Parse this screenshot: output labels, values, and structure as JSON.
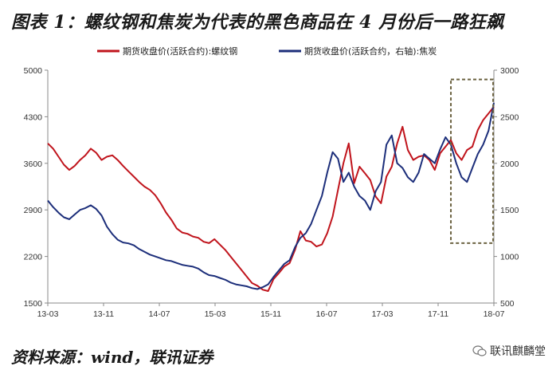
{
  "title": "图表 1：螺纹钢和焦炭为代表的黑色商品在 4 月份后一路狂飙",
  "source": "资料来源：wind，联讯证券",
  "watermark": "联讯麒麟堂",
  "colors": {
    "rebar": "#c0141c",
    "coke": "#1c2e7a",
    "box": "#6b6240"
  },
  "chart_data": {
    "type": "line",
    "x_ticks": [
      "13-03",
      "13-11",
      "14-07",
      "15-03",
      "15-11",
      "16-07",
      "17-03",
      "17-11",
      "18-07"
    ],
    "left_axis": {
      "ticks": [
        1500,
        2200,
        2900,
        3600,
        4300,
        5000
      ],
      "range": [
        1500,
        5000
      ]
    },
    "right_axis": {
      "ticks": [
        500,
        1000,
        1500,
        2000,
        2500,
        3000
      ],
      "range": [
        500,
        3000
      ]
    },
    "series": [
      {
        "name": "期货收盘价(活跃合约):螺纹钢",
        "axis": "left",
        "color": "#c0141c",
        "values": [
          3900,
          3820,
          3700,
          3580,
          3500,
          3560,
          3650,
          3720,
          3820,
          3760,
          3650,
          3700,
          3720,
          3650,
          3560,
          3480,
          3400,
          3320,
          3250,
          3200,
          3120,
          3000,
          2860,
          2750,
          2620,
          2560,
          2540,
          2500,
          2480,
          2420,
          2400,
          2460,
          2380,
          2300,
          2200,
          2100,
          2000,
          1900,
          1800,
          1760,
          1700,
          1680,
          1860,
          1950,
          2050,
          2100,
          2300,
          2580,
          2440,
          2420,
          2350,
          2380,
          2550,
          2800,
          3200,
          3600,
          3900,
          3300,
          3550,
          3450,
          3350,
          3100,
          3000,
          3400,
          3550,
          3900,
          4150,
          3800,
          3650,
          3700,
          3720,
          3650,
          3500,
          3750,
          3850,
          3950,
          3750,
          3650,
          3800,
          3850,
          4100,
          4250,
          4350,
          4450
        ]
      },
      {
        "name": "期货收盘价(活跃合约，右轴):焦炭",
        "axis": "right",
        "color": "#1c2e7a",
        "values": [
          1600,
          1530,
          1470,
          1420,
          1400,
          1450,
          1500,
          1520,
          1550,
          1510,
          1440,
          1320,
          1240,
          1180,
          1150,
          1140,
          1120,
          1080,
          1050,
          1020,
          1000,
          980,
          960,
          950,
          930,
          910,
          900,
          890,
          870,
          830,
          800,
          790,
          770,
          750,
          720,
          700,
          690,
          680,
          660,
          650,
          670,
          700,
          780,
          850,
          920,
          960,
          1100,
          1200,
          1250,
          1350,
          1500,
          1650,
          1900,
          2120,
          2050,
          1800,
          1900,
          1750,
          1650,
          1600,
          1500,
          1700,
          1800,
          2200,
          2300,
          2000,
          1950,
          1850,
          1800,
          1900,
          2100,
          2050,
          2000,
          2150,
          2280,
          2200,
          2000,
          1850,
          1800,
          1950,
          2100,
          2200,
          2350,
          2650
        ]
      }
    ],
    "highlight": {
      "from_index": 75,
      "to_index": 83,
      "ymin_left": 2400,
      "ymax_left": 4860
    }
  }
}
